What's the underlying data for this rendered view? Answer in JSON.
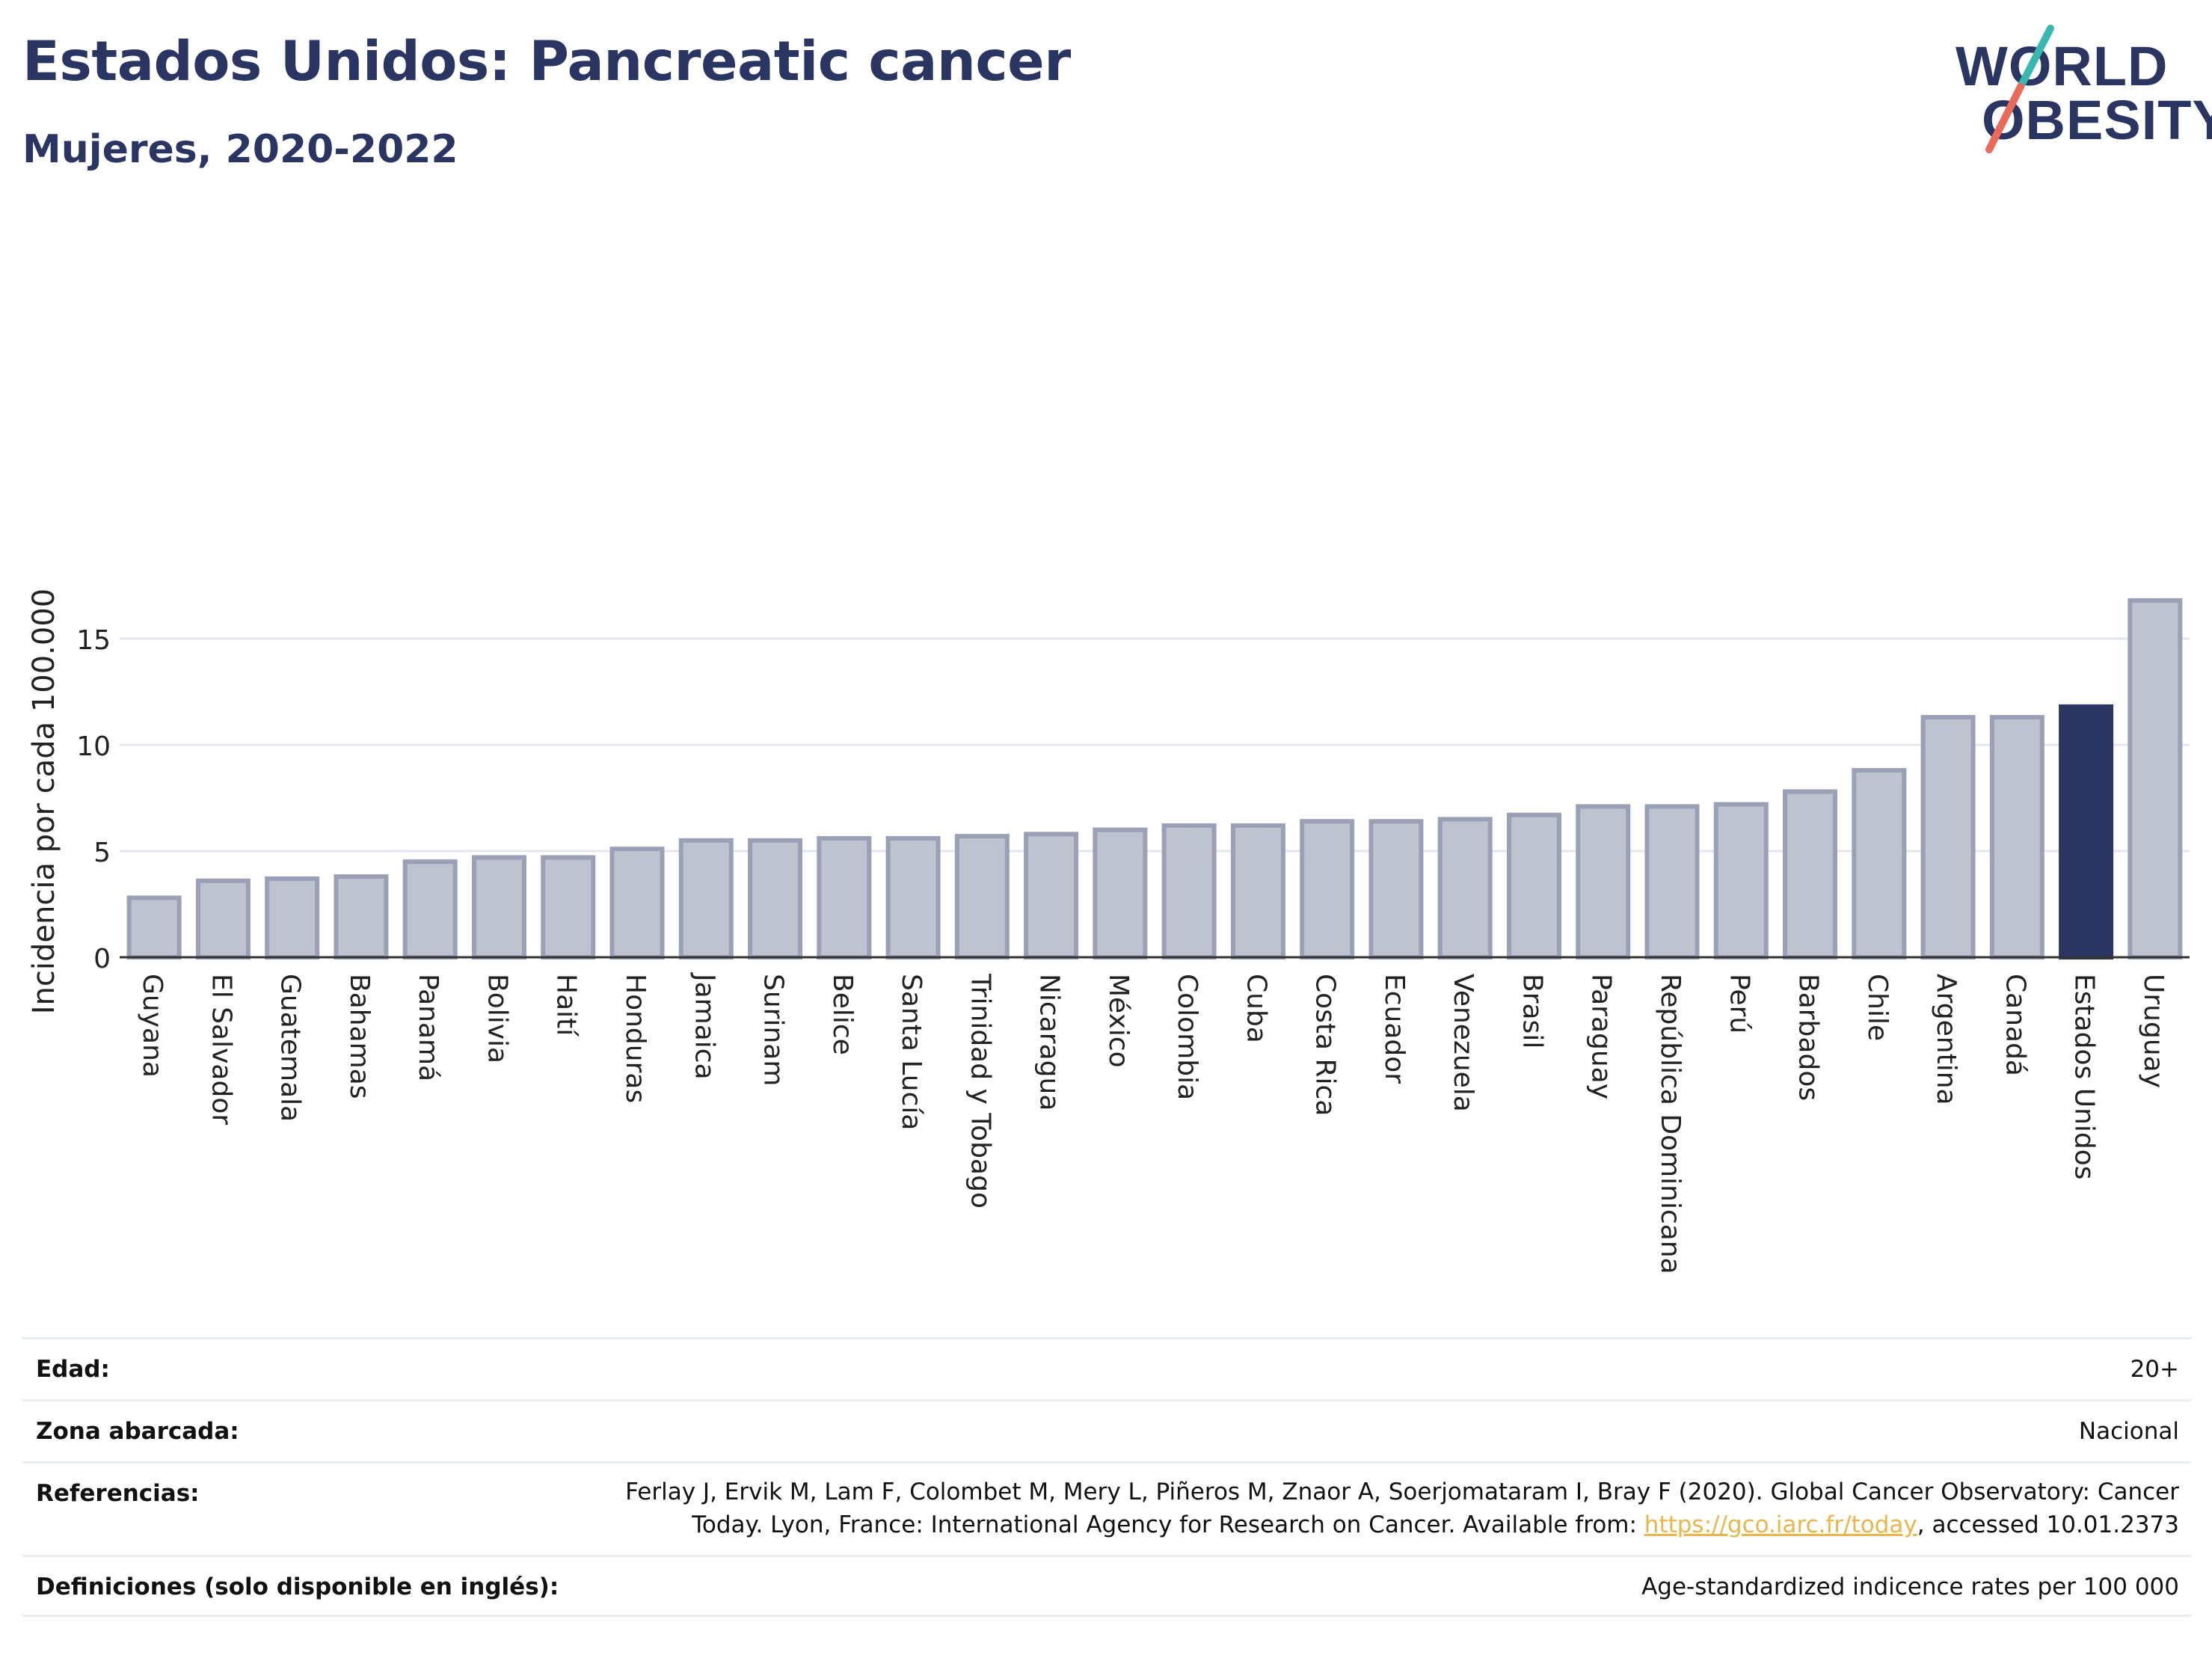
{
  "header": {
    "title": "Estados Unidos: Pancreatic cancer",
    "subtitle": "Mujeres, 2020-2022"
  },
  "logo": {
    "line1": "WORLD",
    "line2": "OBESITY",
    "slash_colors": [
      "#3ab7b0",
      "#e86a5a"
    ]
  },
  "chart_data": {
    "type": "bar",
    "ylabel": "Incidencia por cada 100.000",
    "xlabel": "",
    "ylim": [
      0,
      17.5
    ],
    "yticks": [
      0,
      5,
      10,
      15
    ],
    "grid": true,
    "highlight": "Estados Unidos",
    "colors": {
      "bar": "#bfc3d0",
      "bar_edge": "#9aa0b6",
      "highlight": "#2b3561"
    },
    "categories": [
      "Guyana",
      "El Salvador",
      "Guatemala",
      "Bahamas",
      "Panamá",
      "Bolivia",
      "Haití",
      "Honduras",
      "Jamaica",
      "Surinam",
      "Belice",
      "Santa Lucía",
      "Trinidad y Tobago",
      "Nicaragua",
      "México",
      "Colombia",
      "Cuba",
      "Costa Rica",
      "Ecuador",
      "Venezuela",
      "Brasil",
      "Paraguay",
      "República Dominicana",
      "Perú",
      "Barbados",
      "Chile",
      "Argentina",
      "Canadá",
      "Estados Unidos",
      "Uruguay"
    ],
    "values": [
      2.8,
      3.6,
      3.7,
      3.8,
      4.5,
      4.7,
      4.7,
      5.1,
      5.5,
      5.5,
      5.6,
      5.6,
      5.7,
      5.8,
      6.0,
      6.2,
      6.2,
      6.4,
      6.4,
      6.5,
      6.7,
      7.1,
      7.1,
      7.2,
      7.8,
      8.8,
      11.3,
      11.3,
      11.8,
      16.8
    ]
  },
  "meta": {
    "age_label": "Edad:",
    "age_value": "20+",
    "zone_label": "Zona abarcada:",
    "zone_value": "Nacional",
    "ref_label": "Referencias:",
    "ref_line1": "Ferlay J, Ervik M, Lam F, Colombet M, Mery L, Piñeros M, Znaor A, Soerjomataram I, Bray F (2020). Global Cancer Observatory: Cancer",
    "ref_line2_pre": "Today. Lyon, France: International Agency for Research on Cancer. Available from: ",
    "ref_link": "https://gco.iarc.fr/today",
    "ref_line2_post": ", accessed 10.01.2373",
    "def_label": "Definiciones (solo disponible en inglés):",
    "def_value": "Age-standardized indicence rates per 100 000"
  }
}
